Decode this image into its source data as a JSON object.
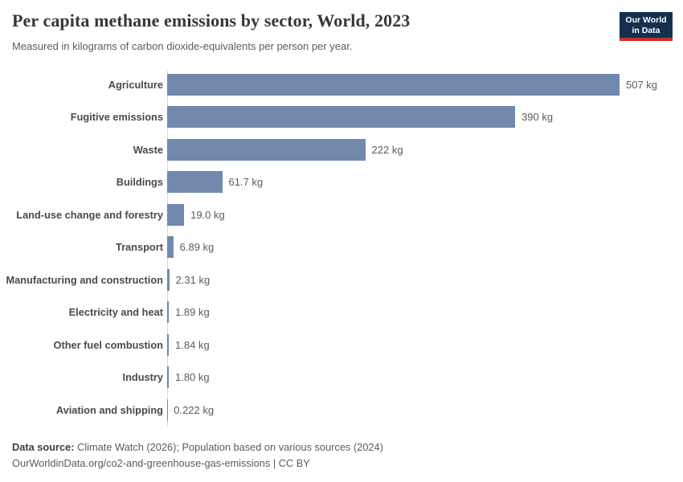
{
  "header": {
    "title": "Per capita methane emissions by sector, World, 2023",
    "subtitle": "Measured in kilograms of carbon dioxide-equivalents per person per year.",
    "logo": {
      "line1": "Our World",
      "line2": "in Data",
      "bg_color": "#15304f",
      "accent_color": "#c5302d"
    }
  },
  "chart_data": {
    "type": "bar",
    "orientation": "horizontal",
    "title": "Per capita methane emissions by sector, World, 2023",
    "unit": "kg",
    "xlim": [
      0,
      507
    ],
    "grid": false,
    "legend": "none",
    "bar_color": "#7289ad",
    "categories": [
      "Agriculture",
      "Fugitive emissions",
      "Waste",
      "Buildings",
      "Land-use change and forestry",
      "Transport",
      "Manufacturing and construction",
      "Electricity and heat",
      "Other fuel combustion",
      "Industry",
      "Aviation and shipping"
    ],
    "values": [
      507,
      390,
      222,
      61.7,
      19.0,
      6.89,
      2.31,
      1.89,
      1.84,
      1.8,
      0.222
    ],
    "value_labels": [
      "507 kg",
      "390 kg",
      "222 kg",
      "61.7 kg",
      "19.0 kg",
      "6.89 kg",
      "2.31 kg",
      "1.89 kg",
      "1.84 kg",
      "1.80 kg",
      "0.222 kg"
    ]
  },
  "footer": {
    "source_label": "Data source:",
    "source_text": " Climate Watch (2026); Population based on various sources (2024)",
    "link_line": "OurWorldinData.org/co2-and-greenhouse-gas-emissions | CC BY"
  }
}
